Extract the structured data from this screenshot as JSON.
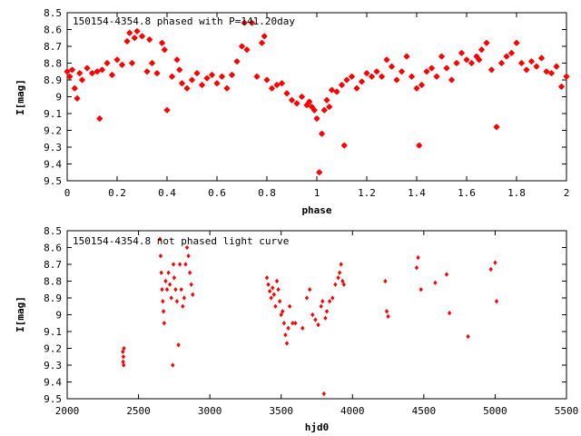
{
  "chart_data": [
    {
      "type": "scatter",
      "title": "150154-4354.8  phased with P=141.20day",
      "xlabel": "phase",
      "ylabel": "I[mag]",
      "xlim": [
        0,
        2
      ],
      "ylim": [
        8.5,
        9.5
      ],
      "y_inverted": true,
      "x_ticks": [
        "0",
        "0.2",
        "0.4",
        "0.6",
        "0.8",
        "1",
        "1.2",
        "1.4",
        "1.6",
        "1.8",
        "2"
      ],
      "y_ticks": [
        "8.5",
        "8.6",
        "8.7",
        "8.8",
        "8.9",
        "9",
        "9.1",
        "9.2",
        "9.3",
        "9.4",
        "9.5"
      ],
      "marker": "star",
      "color": "#ff0000",
      "grid": false,
      "legend": "top-left",
      "series": [
        {
          "x": [
            0.0,
            0.01,
            0.02,
            0.03,
            0.04,
            0.05,
            0.06,
            0.08,
            0.1,
            0.12,
            0.13,
            0.14,
            0.16,
            0.18,
            0.2,
            0.22,
            0.24,
            0.25,
            0.26,
            0.27,
            0.28,
            0.3,
            0.32,
            0.33,
            0.34,
            0.36,
            0.38,
            0.39,
            0.4,
            0.42,
            0.44,
            0.45,
            0.46,
            0.48,
            0.5,
            0.52,
            0.54,
            0.56,
            0.58,
            0.6,
            0.62,
            0.64,
            0.66,
            0.68,
            0.7,
            0.71,
            0.72,
            0.74,
            0.76,
            0.78,
            0.79,
            0.8,
            0.82,
            0.84,
            0.86,
            0.88,
            0.9,
            0.92,
            0.94,
            0.96,
            0.97,
            0.98,
            0.99,
            1.0,
            1.01,
            1.02,
            1.03,
            1.04,
            1.05,
            1.06,
            1.08,
            1.1,
            1.11,
            1.12,
            1.14,
            1.16,
            1.18,
            1.2,
            1.22,
            1.24,
            1.26,
            1.28,
            1.3,
            1.32,
            1.34,
            1.36,
            1.38,
            1.4,
            1.41,
            1.42,
            1.44,
            1.46,
            1.48,
            1.5,
            1.52,
            1.54,
            1.56,
            1.58,
            1.6,
            1.62,
            1.64,
            1.65,
            1.66,
            1.68,
            1.7,
            1.72,
            1.74,
            1.76,
            1.78,
            1.8,
            1.82,
            1.84,
            1.86,
            1.88,
            1.9,
            1.92,
            1.94,
            1.96,
            1.98,
            2.0
          ],
          "y": [
            8.85,
            8.88,
            8.84,
            8.95,
            9.01,
            8.86,
            8.9,
            8.83,
            8.86,
            8.85,
            9.13,
            8.84,
            8.8,
            8.87,
            8.78,
            8.81,
            8.67,
            8.62,
            8.8,
            8.65,
            8.61,
            8.64,
            8.85,
            8.66,
            8.8,
            8.86,
            8.68,
            8.72,
            9.08,
            8.88,
            8.78,
            8.84,
            8.92,
            8.95,
            8.9,
            8.86,
            8.93,
            8.89,
            8.87,
            8.92,
            8.88,
            8.95,
            8.87,
            8.79,
            8.7,
            8.56,
            8.72,
            8.56,
            8.88,
            8.68,
            8.64,
            8.9,
            8.95,
            8.93,
            8.92,
            8.98,
            9.02,
            9.04,
            9.0,
            9.05,
            9.03,
            9.06,
            9.08,
            9.13,
            9.45,
            9.22,
            9.08,
            9.02,
            9.06,
            8.96,
            8.97,
            8.93,
            9.29,
            8.9,
            8.88,
            8.95,
            8.91,
            8.86,
            8.88,
            8.85,
            8.88,
            8.78,
            8.82,
            8.9,
            8.85,
            8.76,
            8.88,
            8.95,
            9.29,
            8.93,
            8.85,
            8.83,
            8.88,
            8.76,
            8.83,
            8.9,
            8.8,
            8.74,
            8.78,
            8.8,
            8.76,
            8.78,
            8.72,
            8.68,
            8.84,
            9.18,
            8.8,
            8.76,
            8.74,
            8.68,
            8.8,
            8.84,
            8.79,
            8.82,
            8.77,
            8.85,
            8.86,
            8.82,
            8.94,
            8.88
          ]
        }
      ]
    },
    {
      "type": "scatter",
      "title": "150154-4354.8 not phased light curve",
      "xlabel": "hjd0",
      "ylabel": "I[mag]",
      "xlim": [
        2000,
        5500
      ],
      "ylim": [
        8.5,
        9.5
      ],
      "y_inverted": true,
      "x_ticks": [
        "2000",
        "2500",
        "3000",
        "3500",
        "4000",
        "4500",
        "5000",
        "5500"
      ],
      "y_ticks": [
        "8.5",
        "8.6",
        "8.7",
        "8.8",
        "8.9",
        "9",
        "9.1",
        "9.2",
        "9.3",
        "9.4",
        "9.5"
      ],
      "marker": "diamond",
      "color": "#ff0000",
      "grid": false,
      "legend": "top-left",
      "series": [
        {
          "x": [
            2390,
            2392,
            2394,
            2396,
            2398,
            2650,
            2655,
            2660,
            2665,
            2670,
            2675,
            2680,
            2690,
            2700,
            2710,
            2720,
            2730,
            2740,
            2745,
            2750,
            2760,
            2770,
            2780,
            2790,
            2800,
            2810,
            2820,
            2830,
            2840,
            2850,
            2860,
            2870,
            2880,
            3400,
            3410,
            3420,
            3430,
            3440,
            3450,
            3460,
            3470,
            3480,
            3490,
            3500,
            3510,
            3520,
            3530,
            3540,
            3550,
            3560,
            3580,
            3600,
            3650,
            3680,
            3700,
            3720,
            3740,
            3760,
            3780,
            3790,
            3800,
            3810,
            3820,
            3840,
            3860,
            3880,
            3900,
            3910,
            3920,
            3930,
            3940,
            4230,
            4240,
            4250,
            4450,
            4460,
            4480,
            4580,
            4660,
            4680,
            4810,
            4970,
            5000,
            5010
          ],
          "y": [
            9.22,
            9.28,
            9.25,
            9.3,
            9.2,
            8.55,
            8.65,
            8.75,
            8.85,
            8.92,
            8.98,
            9.05,
            8.8,
            8.85,
            8.75,
            8.82,
            8.9,
            9.3,
            8.7,
            8.78,
            8.85,
            8.92,
            9.18,
            8.7,
            8.85,
            8.95,
            8.9,
            8.7,
            8.6,
            8.65,
            8.75,
            8.82,
            8.88,
            8.78,
            8.82,
            8.86,
            8.9,
            8.84,
            8.88,
            8.95,
            8.8,
            8.85,
            8.92,
            9.0,
            8.98,
            9.05,
            9.12,
            9.17,
            9.08,
            8.95,
            9.05,
            9.05,
            9.08,
            8.9,
            8.85,
            9.0,
            9.03,
            9.06,
            8.95,
            8.92,
            9.47,
            9.02,
            8.98,
            8.92,
            8.9,
            8.82,
            8.78,
            8.75,
            8.7,
            8.8,
            8.82,
            8.8,
            8.98,
            9.01,
            8.72,
            8.66,
            8.85,
            8.81,
            8.76,
            8.99,
            9.13,
            8.73,
            8.69,
            8.92
          ]
        }
      ]
    }
  ]
}
